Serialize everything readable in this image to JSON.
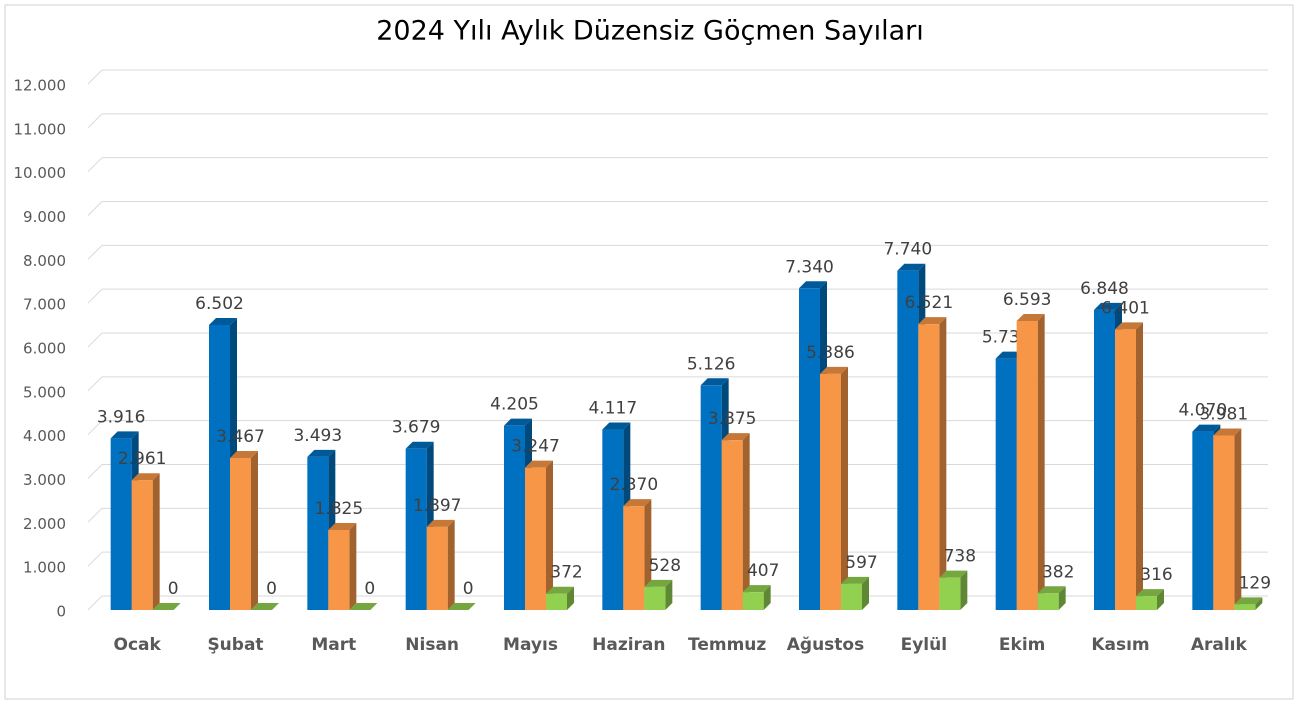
{
  "chart_data": {
    "type": "bar3d",
    "title": "2024 Yılı Aylık Düzensiz Göçmen Sayıları",
    "categories": [
      "Ocak",
      "Şubat",
      "Mart",
      "Nisan",
      "Mayıs",
      "Haziran",
      "Temmuz",
      "Ağustos",
      "Eylül",
      "Ekim",
      "Kasım",
      "Aralık"
    ],
    "series": [
      {
        "color": "#0070c0",
        "values": [
          3916,
          6502,
          3493,
          3679,
          4205,
          4117,
          5126,
          7340,
          7740,
          5735,
          6848,
          4070
        ],
        "value_labels": [
          "3.916",
          "6.502",
          "3.493",
          "3.679",
          "4.205",
          "4.117",
          "5.126",
          "7.340",
          "7.740",
          "5.735",
          "6.848",
          "4.070"
        ]
      },
      {
        "color": "#f79646",
        "values": [
          2961,
          3467,
          1825,
          1897,
          3247,
          2370,
          3875,
          5386,
          6521,
          6593,
          6401,
          3981
        ],
        "value_labels": [
          "2.961",
          "3.467",
          "1.825",
          "1.897",
          "3.247",
          "2.370",
          "3.875",
          "5.386",
          "6.521",
          "6.593",
          "6.401",
          "3.981"
        ]
      },
      {
        "color": "#92d050",
        "values": [
          0,
          0,
          0,
          0,
          372,
          528,
          407,
          597,
          738,
          382,
          316,
          129
        ],
        "value_labels": [
          "0",
          "0",
          "0",
          "0",
          "372",
          "528",
          "407",
          "597",
          "738",
          "382",
          "316",
          "129"
        ]
      }
    ],
    "ylim": [
      0,
      12000
    ],
    "yticks": [
      0,
      {
        "value": 1000,
        "label": "1.000"
      },
      {
        "value": 2000,
        "label": "2.000"
      },
      {
        "value": 3000,
        "label": "3.000"
      },
      {
        "value": 4000,
        "label": "4.000"
      },
      {
        "value": 5000,
        "label": "5.000"
      },
      {
        "value": 6000,
        "label": "6.000"
      },
      {
        "value": 7000,
        "label": "7.000"
      },
      {
        "value": 8000,
        "label": "8.000"
      },
      {
        "value": 9000,
        "label": "9.000"
      },
      {
        "value": 10000,
        "label": "10.000"
      },
      {
        "value": 11000,
        "label": "11.000"
      },
      {
        "value": 12000,
        "label": "12.000"
      }
    ],
    "grid": true
  }
}
